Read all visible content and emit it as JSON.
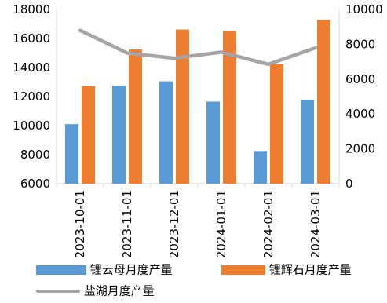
{
  "chart_data": {
    "type": "bar",
    "categories": [
      "2023-10-01",
      "2023-11-01",
      "2023-12-01",
      "2024-01-01",
      "2024-02-01",
      "2024-03-01"
    ],
    "series": [
      {
        "name": "锂云母月度产量",
        "kind": "bar",
        "axis": "left",
        "color": "#5B9BD5",
        "values": [
          10100,
          12750,
          13050,
          11650,
          8250,
          11750
        ]
      },
      {
        "name": "锂辉石月度产量",
        "kind": "bar",
        "axis": "right",
        "color": "#ED7D31",
        "values": [
          5600,
          7700,
          8850,
          8750,
          6850,
          9400
        ]
      },
      {
        "name": "盐湖月度产量",
        "kind": "line",
        "axis": "right",
        "color": "#A5A5A5",
        "values": [
          8800,
          7500,
          7200,
          7550,
          6850,
          7800
        ]
      }
    ],
    "ylim_left": [
      6000,
      18000
    ],
    "yticks_left": [
      "6000",
      "8000",
      "10000",
      "12000",
      "14000",
      "16000",
      "18000"
    ],
    "ylim_right": [
      0,
      10000
    ],
    "yticks_right": [
      "0",
      "2000",
      "4000",
      "6000",
      "8000",
      "10000"
    ],
    "grid": false,
    "legend_position": "bottom"
  }
}
